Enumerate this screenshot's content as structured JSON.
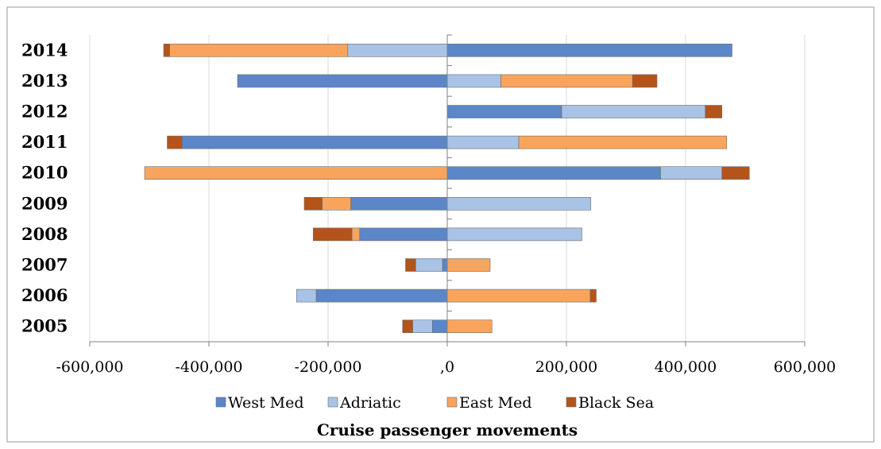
{
  "chart_data": {
    "type": "bar",
    "orientation": "horizontal",
    "stacked": true,
    "xlabel": "Cruise passenger movements",
    "xlim": [
      -600000,
      600000
    ],
    "xticks": [
      -600000,
      -400000,
      -200000,
      0,
      200000,
      400000,
      600000
    ],
    "xtick_labels": [
      "-600,000",
      "-400,000",
      "-200,000",
      ",0",
      "200,000",
      "400,000",
      "600,000"
    ],
    "grid": true,
    "legend_position": "bottom",
    "categories": [
      "2014",
      "2013",
      "2012",
      "2011",
      "2010",
      "2009",
      "2008",
      "2007",
      "2006",
      "2005"
    ],
    "series": [
      {
        "name": "West Med",
        "color": "#5b87c9",
        "values": [
          478000,
          -352000,
          192000,
          -445000,
          358000,
          -162000,
          -147000,
          -8000,
          -220000,
          -25000
        ]
      },
      {
        "name": "Adriatic",
        "color": "#a9c3e6",
        "values": [
          -167000,
          90000,
          241000,
          120000,
          103000,
          241000,
          226000,
          -45000,
          -33000,
          -33000
        ]
      },
      {
        "name": "East Med",
        "color": "#f9a45d",
        "values": [
          -299000,
          221000,
          0,
          349000,
          -508000,
          -48000,
          -13000,
          72000,
          240000,
          75000
        ]
      },
      {
        "name": "Black Sea",
        "color": "#b4541a",
        "values": [
          -10000,
          41000,
          28000,
          -25000,
          46000,
          -30000,
          -65000,
          -17000,
          10000,
          -17000
        ]
      }
    ],
    "legend": [
      "West Med",
      "Adriatic",
      "East Med",
      "Black Sea"
    ]
  }
}
